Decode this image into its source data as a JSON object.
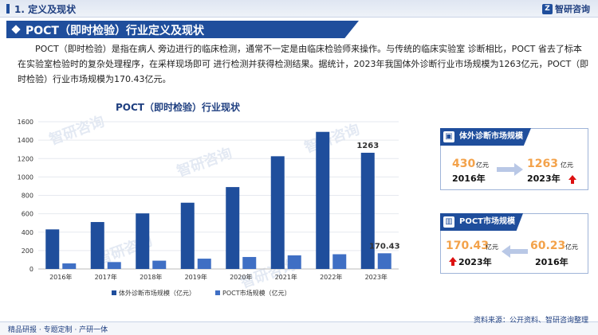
{
  "header": {
    "title": "1. 定义及现状",
    "logo_mark": "Z",
    "logo_text": "智研咨询"
  },
  "banner": {
    "title": "POCT（即时检验）行业定义及现状"
  },
  "paragraph": "POCT（即时检验）是指在病人 旁边进行的临床检测，通常不一定是由临床检验师来操作。与传统的临床实验室 诊断相比，POCT 省去了标本在实验室检验时的复杂处理程序，在采样现场即可 进行检测并获得检测结果。据统计，2023年我国体外诊断行业市场规模为1263亿元，POCT（即时检验）行业市场规模为170.43亿元。",
  "chart_data": {
    "type": "bar",
    "title": "POCT（即时检验）行业现状",
    "categories": [
      "2016年",
      "2017年",
      "2018年",
      "2019年",
      "2020年",
      "2021年",
      "2022年",
      "2023年"
    ],
    "series": [
      {
        "name": "体外诊断市场规模（亿元）",
        "color": "#1f4e9c",
        "values": [
          430,
          510,
          604,
          720,
          890,
          1225,
          1490,
          1263
        ]
      },
      {
        "name": "POCT市场规模（亿元）",
        "color": "#3f6fc4",
        "values": [
          60.23,
          75,
          90,
          112,
          130,
          148,
          160,
          170.43
        ]
      }
    ],
    "ylim": [
      0,
      1600
    ],
    "yticks": [
      0,
      200,
      400,
      600,
      800,
      1000,
      1200,
      1400,
      1600
    ],
    "data_labels": [
      {
        "series": 0,
        "index": 7,
        "text": "1263"
      },
      {
        "series": 1,
        "index": 7,
        "text": "170.43"
      }
    ],
    "legend_position": "bottom"
  },
  "card1": {
    "title": "体外诊断市场规模",
    "icon": "▣",
    "from_value": "430",
    "from_unit": "亿元",
    "from_year": "2016年",
    "to_value": "1263",
    "to_unit": "亿元",
    "to_year": "2023年"
  },
  "card2": {
    "title": "POCT市场规模",
    "icon": "▥",
    "from_value": "170.43",
    "from_unit": "亿元",
    "from_year": "2023年",
    "to_value": "60.23",
    "to_unit": "亿元",
    "to_year": "2016年"
  },
  "footer": {
    "left": "精品研报 · 专题定制 · 产研一体",
    "source": "资料来源：公开资料、智研咨询整理"
  },
  "watermark": "智研咨询"
}
